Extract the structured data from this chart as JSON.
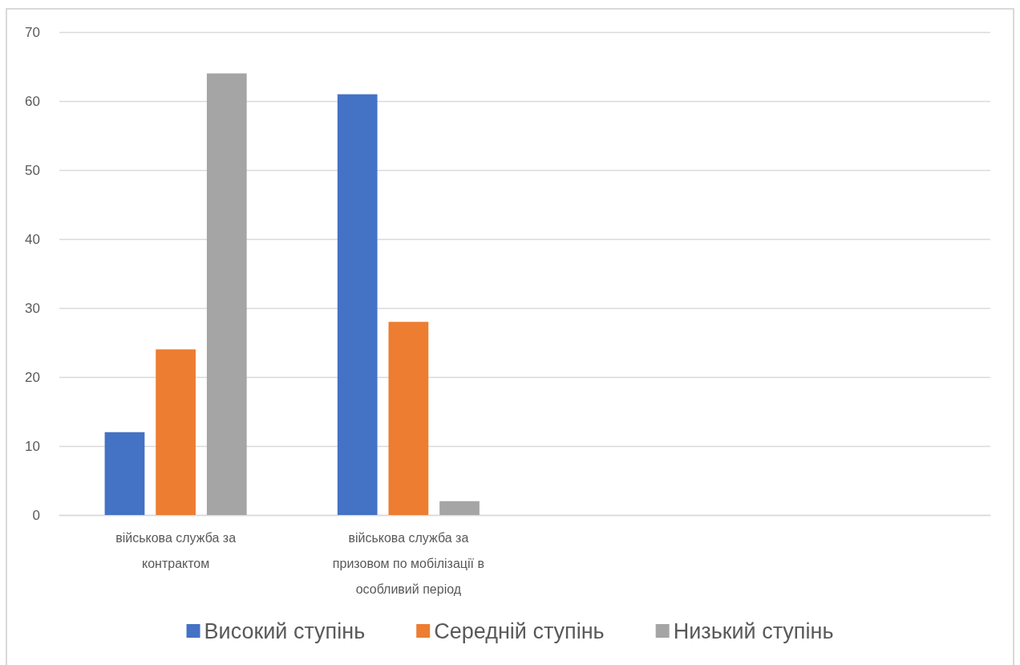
{
  "chart_data": {
    "type": "bar",
    "categories": [
      "військова служба за контрактом",
      "військова служба за призовом по мобілізації в особливий період",
      null,
      null
    ],
    "series": [
      {
        "name": "Високий ступінь",
        "color": "#4472c4",
        "values": [
          12,
          61,
          null,
          null
        ]
      },
      {
        "name": "Середній ступінь",
        "color": "#ed7d31",
        "values": [
          24,
          28,
          null,
          null
        ]
      },
      {
        "name": "Низький ступінь",
        "color": "#a5a5a5",
        "values": [
          64,
          2,
          null,
          null
        ]
      }
    ],
    "ylim": [
      0,
      70
    ],
    "yticks": [
      0,
      10,
      20,
      30,
      40,
      50,
      60,
      70
    ],
    "grid": "y",
    "legend": "bottom"
  }
}
